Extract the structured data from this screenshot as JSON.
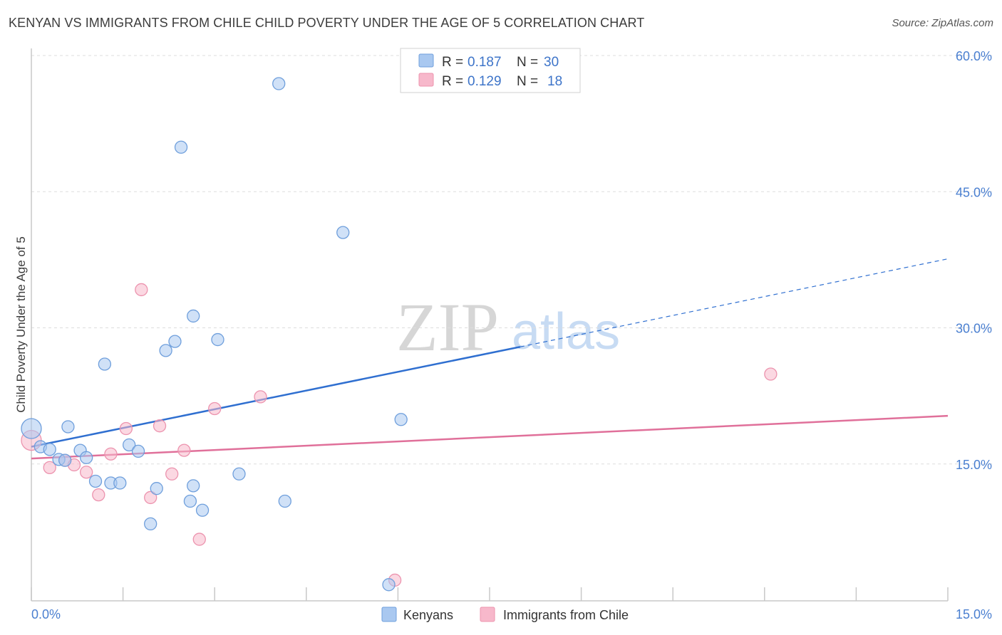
{
  "title": "KENYAN VS IMMIGRANTS FROM CHILE CHILD POVERTY UNDER THE AGE OF 5 CORRELATION CHART",
  "source": "Source: ZipAtlas.com",
  "watermark": {
    "zip": "ZIP",
    "atlas": "atlas"
  },
  "colors": {
    "blue_fill": "#a9c8f0",
    "blue_stroke": "#6f9fdc",
    "blue_line": "#2f6fd0",
    "pink_fill": "#f7b8cb",
    "pink_stroke": "#ec93ae",
    "pink_line": "#e0709a",
    "tick_text": "#4a7fd0",
    "grid": "#dddddd"
  },
  "stats": [
    {
      "r_label": "R =",
      "r_value": "0.187",
      "n_label": "N =",
      "n_value": "30"
    },
    {
      "r_label": "R =",
      "r_value": "0.129",
      "n_label": "N =",
      "n_value": "18"
    }
  ],
  "chart_data": {
    "type": "scatter",
    "title": "KENYAN VS IMMIGRANTS FROM CHILE CHILD POVERTY UNDER THE AGE OF 5 CORRELATION CHART",
    "xlabel": "",
    "ylabel": "Child Poverty Under the Age of 5",
    "xlim": [
      0,
      15
    ],
    "ylim": [
      0,
      60
    ],
    "x_tick_labels": [
      "0.0%",
      "15.0%"
    ],
    "y_ticks": [
      15,
      30,
      45,
      60
    ],
    "y_tick_labels": [
      "15.0%",
      "30.0%",
      "45.0%",
      "60.0%"
    ],
    "grid": true,
    "legend_position": "bottom-center",
    "series": [
      {
        "name": "Kenyans",
        "color": "blue",
        "trend": {
          "x0": 0,
          "y0": 16.9,
          "x1": 8,
          "y1": 27.9,
          "dashed_to_x": 15,
          "dashed_to_y": 37.6
        },
        "points": [
          {
            "x": 0.0,
            "y": 18.9,
            "big": true
          },
          {
            "x": 0.15,
            "y": 16.9
          },
          {
            "x": 0.3,
            "y": 16.6
          },
          {
            "x": 0.45,
            "y": 15.5
          },
          {
            "x": 0.6,
            "y": 19.1
          },
          {
            "x": 0.8,
            "y": 16.5
          },
          {
            "x": 0.9,
            "y": 15.7
          },
          {
            "x": 1.05,
            "y": 13.1
          },
          {
            "x": 1.2,
            "y": 26.0
          },
          {
            "x": 1.3,
            "y": 12.9
          },
          {
            "x": 1.45,
            "y": 12.9
          },
          {
            "x": 1.6,
            "y": 17.1
          },
          {
            "x": 1.75,
            "y": 16.4
          },
          {
            "x": 1.95,
            "y": 8.4
          },
          {
            "x": 2.05,
            "y": 12.3
          },
          {
            "x": 2.2,
            "y": 27.5
          },
          {
            "x": 2.35,
            "y": 28.5
          },
          {
            "x": 2.45,
            "y": 49.9
          },
          {
            "x": 2.6,
            "y": 10.9
          },
          {
            "x": 2.65,
            "y": 31.3
          },
          {
            "x": 2.65,
            "y": 12.6
          },
          {
            "x": 2.8,
            "y": 9.9
          },
          {
            "x": 3.05,
            "y": 28.7
          },
          {
            "x": 3.4,
            "y": 13.9
          },
          {
            "x": 4.05,
            "y": 56.9
          },
          {
            "x": 4.15,
            "y": 10.9
          },
          {
            "x": 5.1,
            "y": 40.5
          },
          {
            "x": 5.85,
            "y": 1.7
          },
          {
            "x": 6.05,
            "y": 19.9
          },
          {
            "x": 0.55,
            "y": 15.4
          }
        ]
      },
      {
        "name": "Immigrants from Chile",
        "color": "pink",
        "trend": {
          "x0": 0,
          "y0": 15.6,
          "x1": 15,
          "y1": 20.3
        },
        "points": [
          {
            "x": 0.0,
            "y": 17.6,
            "big": true
          },
          {
            "x": 0.3,
            "y": 14.6
          },
          {
            "x": 0.55,
            "y": 15.4
          },
          {
            "x": 0.7,
            "y": 14.9
          },
          {
            "x": 0.9,
            "y": 14.1
          },
          {
            "x": 1.1,
            "y": 11.6
          },
          {
            "x": 1.3,
            "y": 16.1
          },
          {
            "x": 1.55,
            "y": 18.9
          },
          {
            "x": 1.8,
            "y": 34.2
          },
          {
            "x": 1.95,
            "y": 11.3
          },
          {
            "x": 2.1,
            "y": 19.2
          },
          {
            "x": 2.3,
            "y": 13.9
          },
          {
            "x": 2.5,
            "y": 16.5
          },
          {
            "x": 2.75,
            "y": 6.7
          },
          {
            "x": 3.0,
            "y": 21.1
          },
          {
            "x": 3.75,
            "y": 22.4
          },
          {
            "x": 5.95,
            "y": 2.2
          },
          {
            "x": 12.1,
            "y": 24.9
          }
        ]
      }
    ]
  }
}
